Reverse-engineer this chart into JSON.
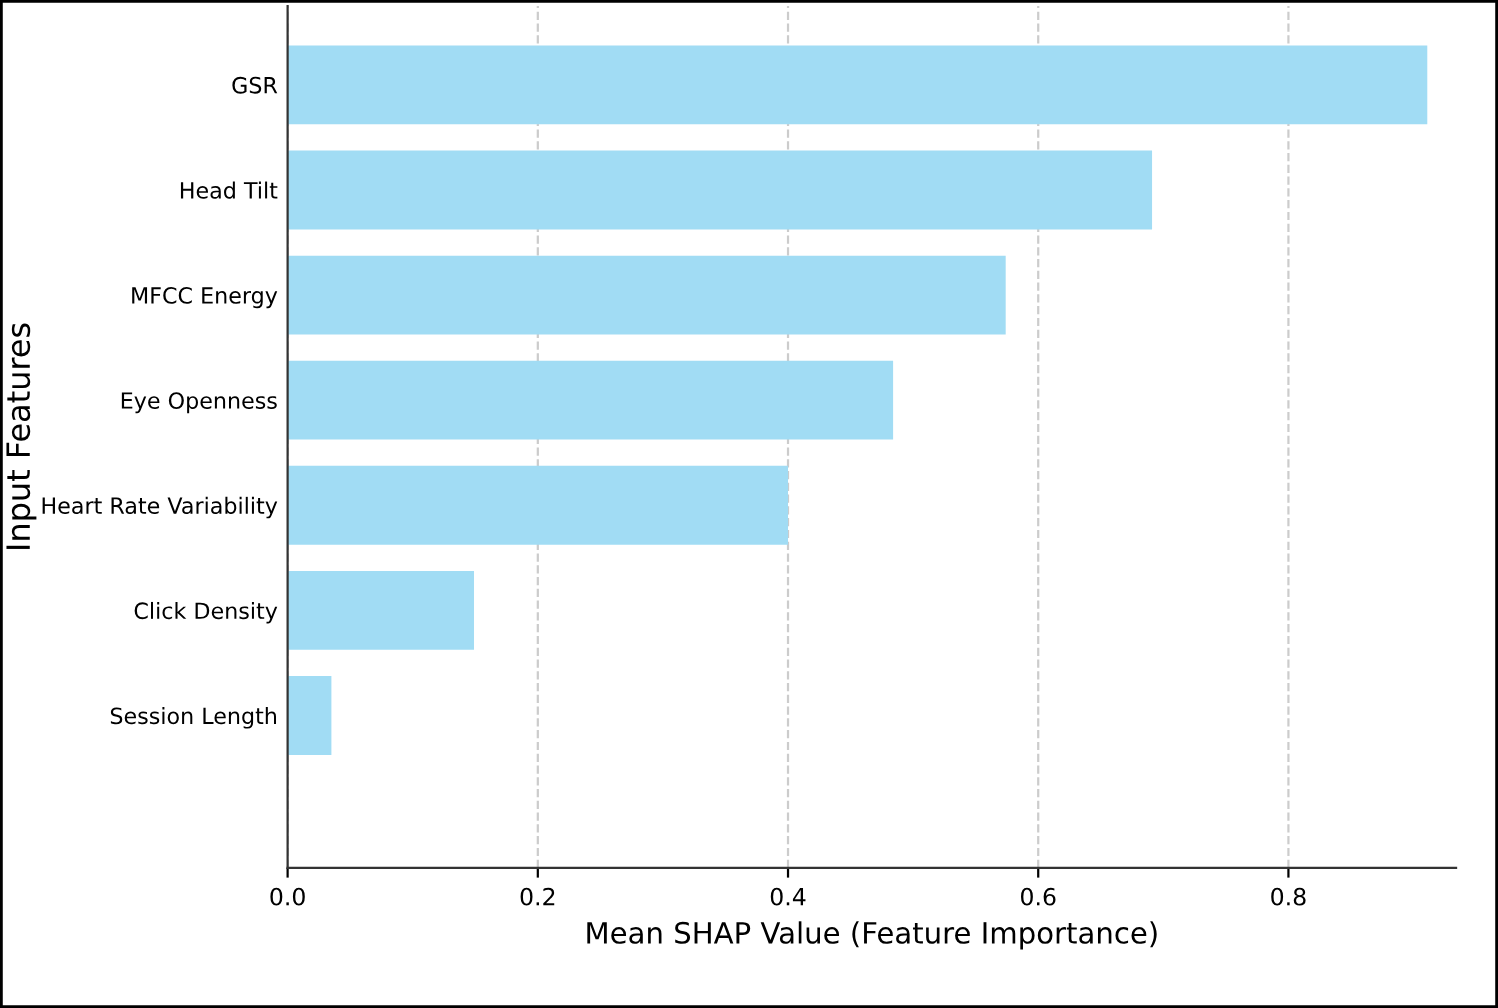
{
  "chart_data": {
    "type": "bar",
    "orientation": "horizontal",
    "categories": [
      "GSR",
      "Head Tilt",
      "MFCC Energy",
      "Eye Openness",
      "Heart Rate Variability",
      "Click Density",
      "Session Length"
    ],
    "values": [
      0.911,
      0.691,
      0.574,
      0.484,
      0.4,
      0.149,
      0.035
    ],
    "color": "#a1dcf4",
    "xlabel": "Mean SHAP Value (Feature Importance)",
    "ylabel": "Input Features",
    "xlim": [
      0,
      0.934
    ],
    "xticks": [
      {
        "value": 0,
        "label": "0.0"
      },
      0.2,
      0.4,
      0.6,
      0.8
    ],
    "grid": "x",
    "legend": false
  }
}
